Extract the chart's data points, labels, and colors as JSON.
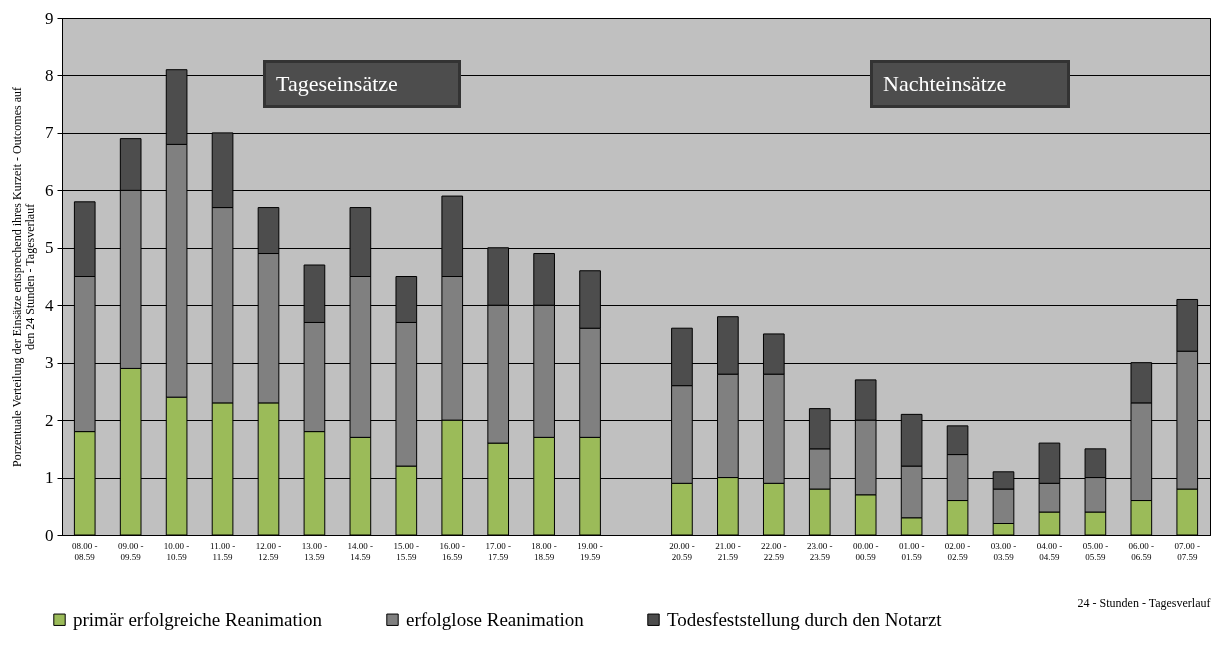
{
  "chart_data": {
    "type": "bar",
    "stacked": true,
    "ylabel": "Porzentuale Verteilung der Einsätze entsprechend ihres Kurzeit - Outcomes auf den 24 Stunden - Tagesverlauf",
    "xlabel": "24 - Stunden - Tagesverlauf",
    "categories": [
      "08.00 - 08.59",
      "09.00 - 09.59",
      "10.00 - 10.59",
      "11.00 - 11.59",
      "12.00 - 12.59",
      "13.00 - 13.59",
      "14.00 - 14.59",
      "15.00 - 15.59",
      "16.00 - 16.59",
      "17.00 - 17.59",
      "18.00 - 18.59",
      "19.00 - 19.59",
      null,
      "20.00 - 20.59",
      "21.00 - 21.59",
      "22.00 - 22.59",
      "23.00 - 23.59",
      "00.00 - 00.59",
      "01.00 - 01.59",
      "02.00 - 02.59",
      "03.00 - 03.59",
      "04.00 - 04.59",
      "05.00 - 05.59",
      "06.00 - 06.59",
      "07.00 - 07.59"
    ],
    "series": [
      {
        "name": "primär erfolgreiche Reanimation",
        "color": "#9bbb59",
        "values": [
          1.8,
          2.9,
          2.4,
          2.3,
          2.3,
          1.8,
          1.7,
          1.2,
          2.0,
          1.6,
          1.7,
          1.7,
          null,
          0.9,
          1.0,
          0.9,
          0.8,
          0.7,
          0.3,
          0.6,
          0.2,
          0.4,
          0.4,
          0.6,
          0.8
        ]
      },
      {
        "name": "erfolglose Reanimation",
        "color": "#808080",
        "values": [
          2.7,
          3.1,
          4.4,
          3.4,
          2.6,
          1.9,
          2.8,
          2.5,
          2.5,
          2.4,
          2.3,
          1.9,
          null,
          1.7,
          1.8,
          1.9,
          0.7,
          1.3,
          0.9,
          0.8,
          0.6,
          0.5,
          0.6,
          1.7,
          2.4
        ]
      },
      {
        "name": "Todesfeststellung durch den Notarzt",
        "color": "#4d4d4d",
        "values": [
          1.3,
          0.9,
          1.3,
          1.3,
          0.8,
          1.0,
          1.2,
          0.8,
          1.4,
          1.0,
          0.9,
          1.0,
          null,
          1.0,
          1.0,
          0.7,
          0.7,
          0.7,
          0.9,
          0.5,
          0.3,
          0.7,
          0.5,
          0.7,
          0.9
        ]
      }
    ],
    "ylim": [
      0,
      9
    ],
    "yticks": [
      0,
      1,
      2,
      3,
      4,
      5,
      6,
      7,
      8,
      9
    ],
    "grid": "y",
    "legend": "bottom",
    "annotations": [
      "Tageseinsätze",
      "Nachteinsätze"
    ]
  }
}
